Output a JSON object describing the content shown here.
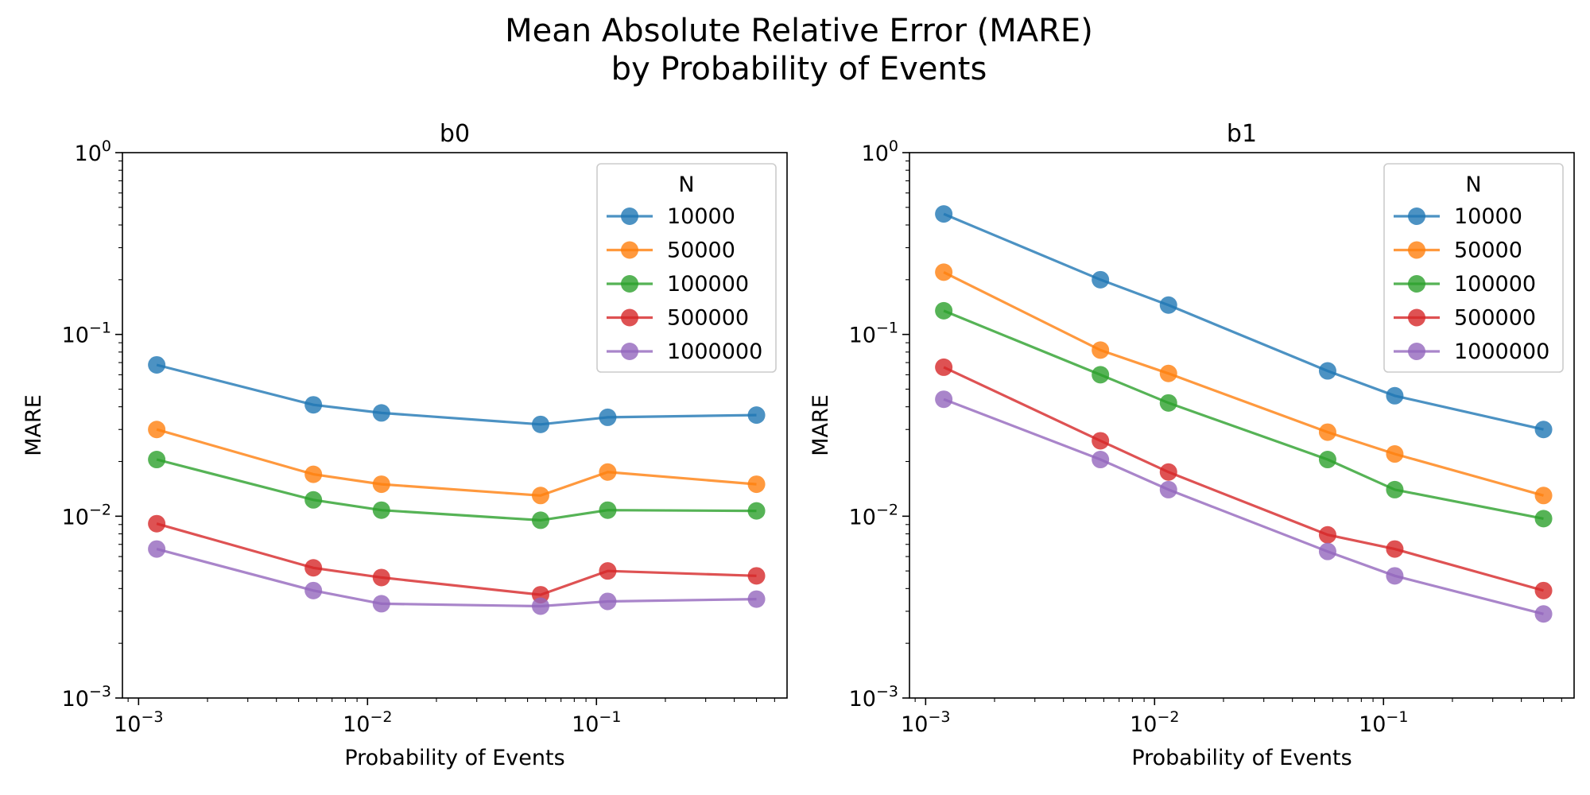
{
  "figure": {
    "title_line1": "Mean Absolute Relative Error (MARE)",
    "title_line2": "by Probability of Events"
  },
  "colors": [
    "#1f77b4",
    "#ff7f0e",
    "#2ca02c",
    "#d62728",
    "#9467bd"
  ],
  "chart_data": [
    {
      "type": "line",
      "title": "b0",
      "xlabel": "Probability of Events",
      "ylabel": "MARE",
      "xscale": "log",
      "yscale": "log",
      "ylim": [
        0.001,
        1
      ],
      "xticks": [
        "10^-3",
        "10^-2",
        "10^-1"
      ],
      "yticks": [
        "10^-3",
        "10^-2",
        "10^-1",
        "10^0"
      ],
      "grid": false,
      "legend": {
        "title": "N",
        "placement": "upper right"
      },
      "x": [
        0.0012,
        0.0058,
        0.0115,
        0.057,
        0.112,
        0.5
      ],
      "series": [
        {
          "name": "10000",
          "values": [
            0.068,
            0.041,
            0.037,
            0.032,
            0.035,
            0.036
          ]
        },
        {
          "name": "50000",
          "values": [
            0.03,
            0.017,
            0.015,
            0.013,
            0.0175,
            0.015
          ]
        },
        {
          "name": "100000",
          "values": [
            0.0205,
            0.0123,
            0.0108,
            0.0095,
            0.0108,
            0.0107
          ]
        },
        {
          "name": "500000",
          "values": [
            0.0091,
            0.0052,
            0.0046,
            0.0037,
            0.005,
            0.0047
          ]
        },
        {
          "name": "1000000",
          "values": [
            0.0066,
            0.0039,
            0.0033,
            0.0032,
            0.0034,
            0.0035
          ]
        }
      ]
    },
    {
      "type": "line",
      "title": "b1",
      "xlabel": "Probability of Events",
      "ylabel": "MARE",
      "xscale": "log",
      "yscale": "log",
      "ylim": [
        0.001,
        1
      ],
      "xticks": [
        "10^-3",
        "10^-2",
        "10^-1"
      ],
      "yticks": [
        "10^-3",
        "10^-2",
        "10^-1",
        "10^0"
      ],
      "grid": false,
      "legend": {
        "title": "N",
        "placement": "upper right"
      },
      "x": [
        0.0012,
        0.0058,
        0.0115,
        0.057,
        0.112,
        0.5
      ],
      "series": [
        {
          "name": "10000",
          "values": [
            0.46,
            0.2,
            0.145,
            0.063,
            0.046,
            0.03
          ]
        },
        {
          "name": "50000",
          "values": [
            0.22,
            0.082,
            0.061,
            0.029,
            0.022,
            0.013
          ]
        },
        {
          "name": "100000",
          "values": [
            0.135,
            0.06,
            0.042,
            0.0205,
            0.014,
            0.0097
          ]
        },
        {
          "name": "500000",
          "values": [
            0.066,
            0.026,
            0.0175,
            0.0079,
            0.0066,
            0.0039
          ]
        },
        {
          "name": "1000000",
          "values": [
            0.044,
            0.0205,
            0.014,
            0.0064,
            0.0047,
            0.0029
          ]
        }
      ]
    }
  ]
}
